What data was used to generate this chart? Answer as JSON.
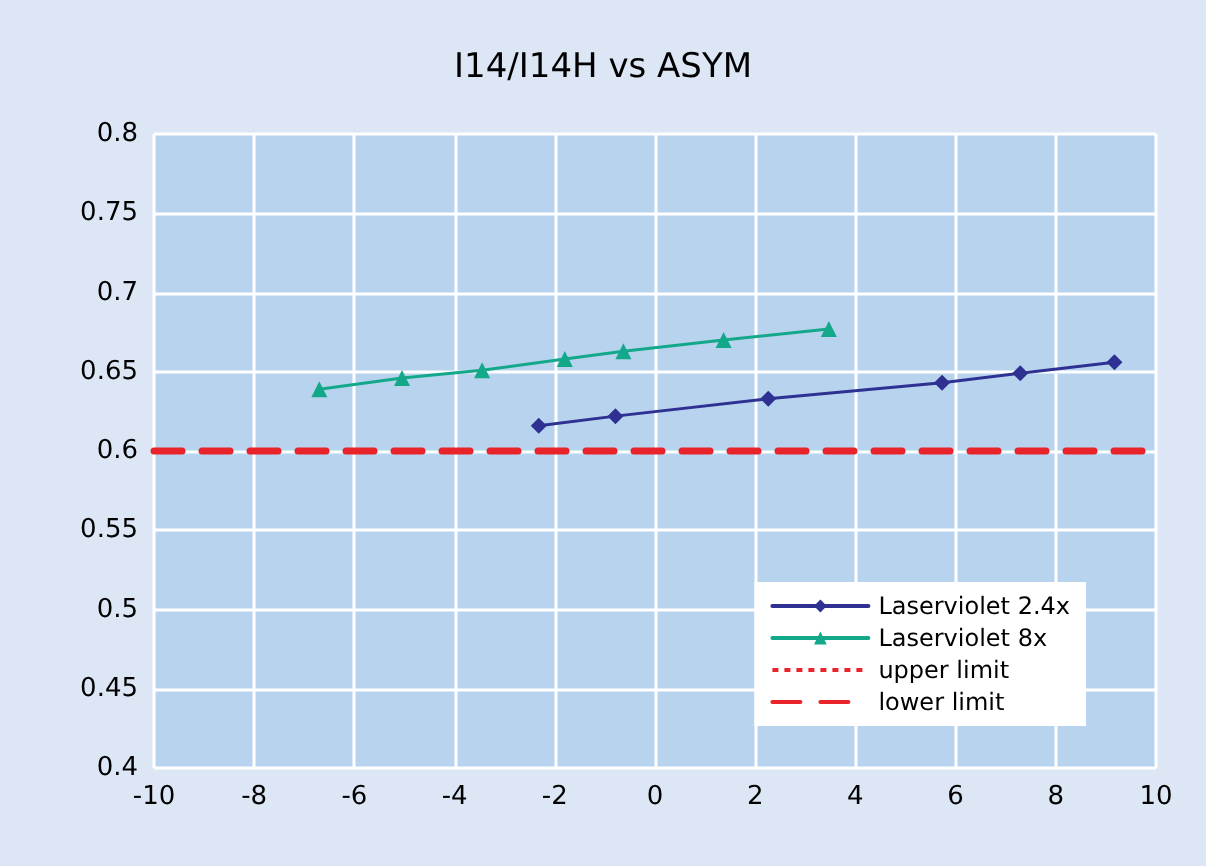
{
  "chart_data": {
    "type": "line",
    "title": "I14/I14H vs ASYM",
    "xlim": [
      -10,
      10
    ],
    "xticks": [
      -10,
      -8,
      -6,
      -4,
      -2,
      0,
      2,
      4,
      6,
      8,
      10
    ],
    "ylim": [
      0.4,
      0.8
    ],
    "yticks": [
      0.4,
      0.45,
      0.5,
      0.55,
      0.6,
      0.65,
      0.7,
      0.75,
      0.8
    ],
    "grid": true,
    "legend": "bottom right",
    "series": [
      {
        "name": "Laserviolet 2.4x",
        "color": "#2e3192",
        "marker": "diamond",
        "x": [
          -2.32,
          -0.79,
          2.26,
          5.73,
          7.29,
          9.17
        ],
        "values": [
          0.616,
          0.622,
          0.633,
          0.643,
          0.649,
          0.656
        ]
      },
      {
        "name": "Laserviolet 8x",
        "color": "#14a88a",
        "marker": "triangle",
        "x": [
          -6.7,
          -5.05,
          -3.45,
          -1.8,
          -0.63,
          1.37,
          3.47
        ],
        "values": [
          0.639,
          0.646,
          0.651,
          0.658,
          0.663,
          0.67,
          0.677
        ]
      },
      {
        "name": "upper limit",
        "color": "#e8232a",
        "marker": "none",
        "line_style": "dotted"
      },
      {
        "name": "lower limit",
        "color": "#e8232a",
        "marker": "none",
        "line_style": "dashed",
        "x": [
          -10,
          10
        ],
        "values": [
          0.6,
          0.6
        ]
      }
    ]
  }
}
